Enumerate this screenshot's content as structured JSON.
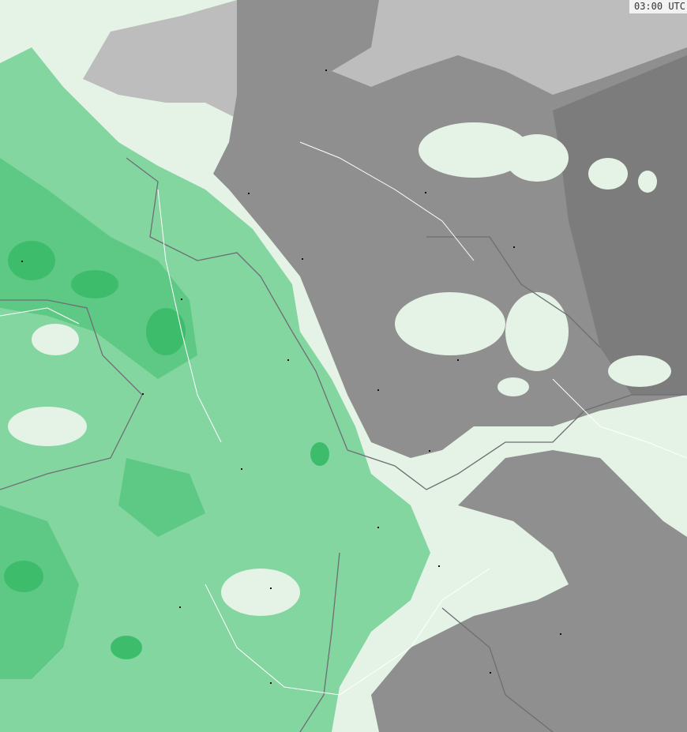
{
  "timestamp": "03:00 UTC",
  "colors": {
    "background_light": "#e4f3e6",
    "precip_light": "#84d6a0",
    "precip_medium": "#5ec985",
    "precip_heavy": "#3dbd6c",
    "cloud_dark": "#8f8f8f",
    "cloud_darker": "#7c7c7c",
    "cloud_light": "#bdbdbd",
    "borders": "#6e6e73",
    "rivers": "#ffffff",
    "cities": "#111111"
  }
}
